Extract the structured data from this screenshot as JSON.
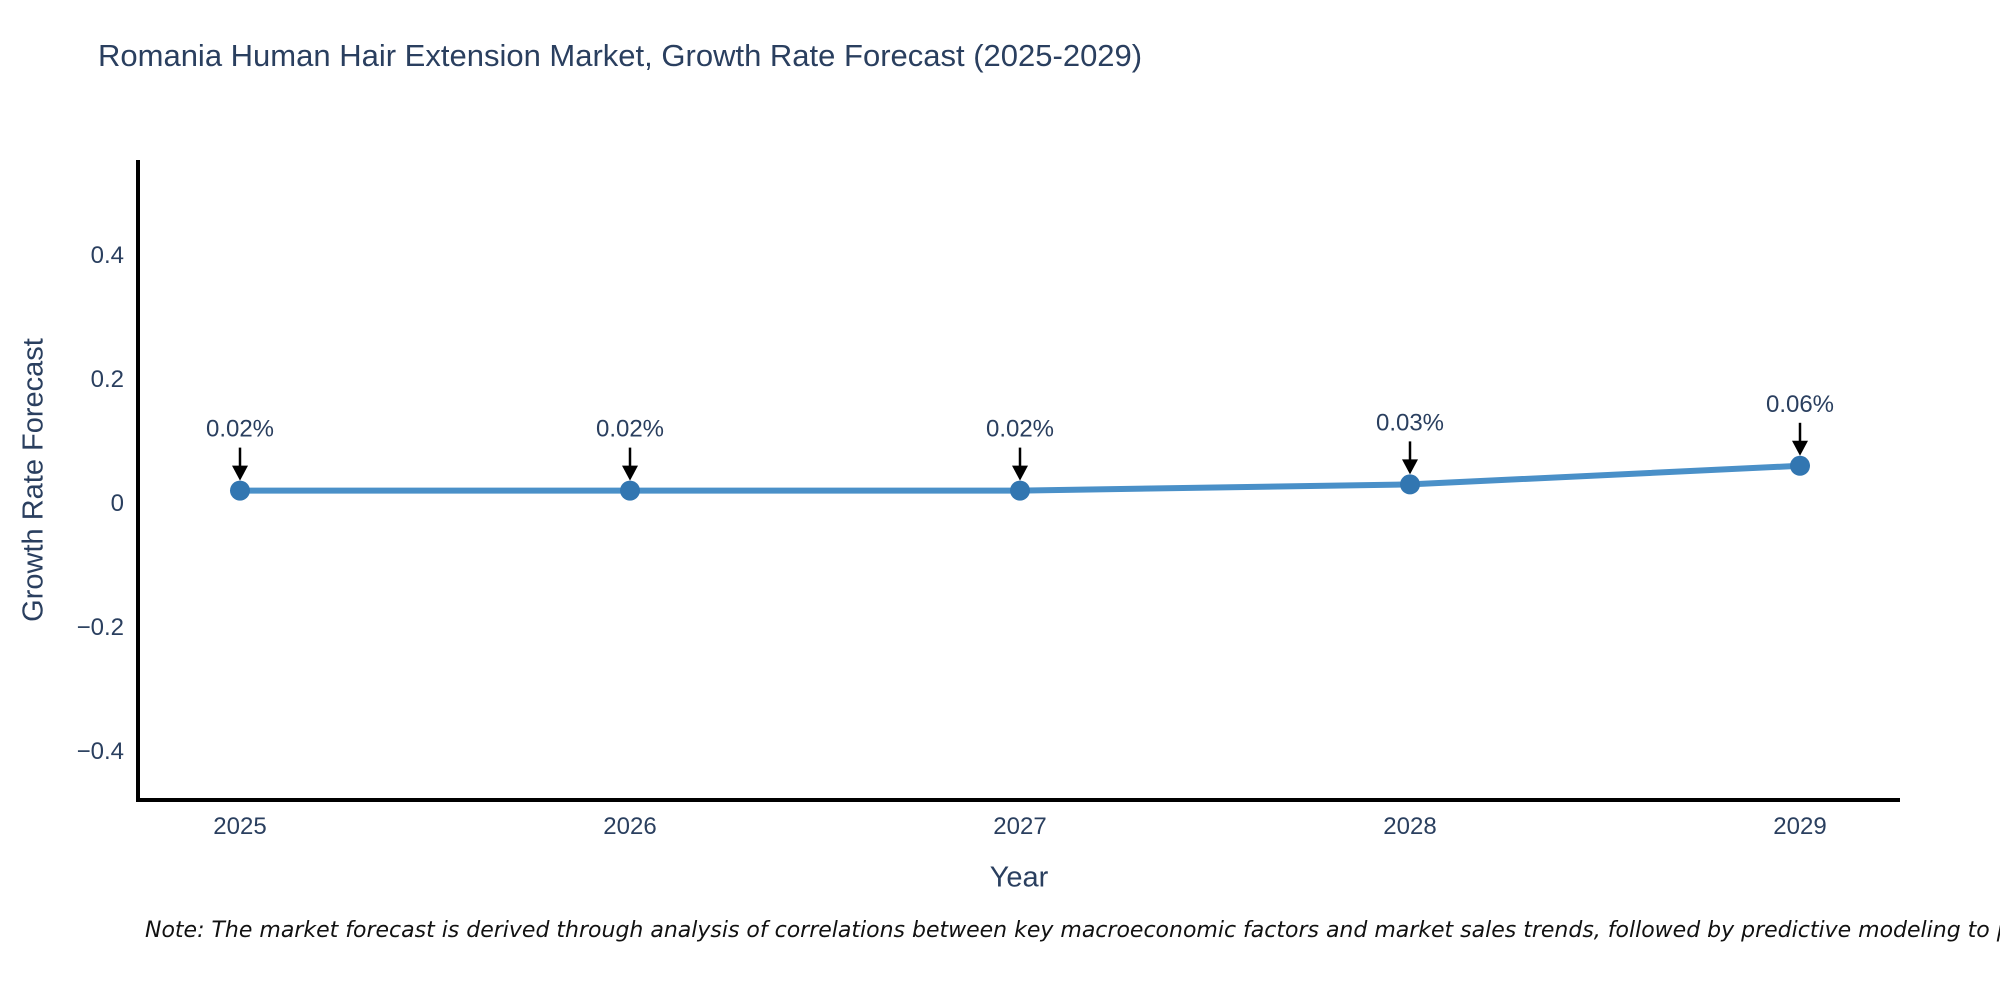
{
  "note": "Note: The market forecast is derived through analysis of correlations between key macroeconomic factors and market sales trends, followed by predictive modeling to project future sales.",
  "colors": {
    "line": "#4a90c8",
    "marker": "#3276b1",
    "axis": "#000000",
    "text": "#2a3f5f",
    "arrow": "#000000"
  },
  "chart_data": {
    "type": "line",
    "title": "Romania Human Hair Extension Market, Growth Rate Forecast (2025-2029)",
    "xlabel": "Year",
    "ylabel": "Growth Rate Forecast",
    "categories": [
      "2025",
      "2026",
      "2027",
      "2028",
      "2029"
    ],
    "values": [
      0.02,
      0.02,
      0.02,
      0.03,
      0.06
    ],
    "point_labels": [
      "0.02%",
      "0.02%",
      "0.02%",
      "0.03%",
      "0.06%"
    ],
    "yticks": [
      {
        "v": 0.4,
        "label": "0.4"
      },
      {
        "v": 0.2,
        "label": "0.2"
      },
      {
        "v": 0,
        "label": "0"
      },
      {
        "v": -0.2,
        "label": "−0.2"
      },
      {
        "v": -0.4,
        "label": "−0.4"
      }
    ],
    "ylim": [
      -0.48,
      0.55
    ],
    "grid": false,
    "legend": "none",
    "annotation_arrows": true,
    "marker_style": "circle"
  }
}
